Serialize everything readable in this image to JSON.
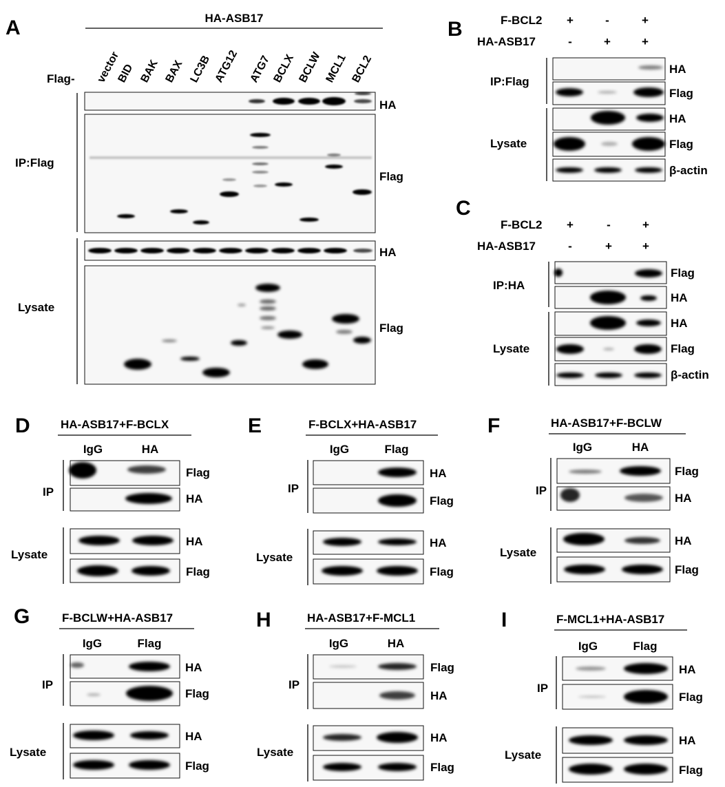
{
  "panelA": {
    "letter": "A",
    "header": "HA-ASB17",
    "row_prefix": "Flag-",
    "lanes": [
      "vector",
      "BID",
      "BAK",
      "BAX",
      "LC3B",
      "ATG12",
      "ATG7",
      "BCLX",
      "BCLW",
      "MCL1",
      "BCL2"
    ],
    "groups": [
      "IP:Flag",
      "Lysate"
    ],
    "blot_labels": [
      "HA",
      "Flag",
      "HA",
      "Flag"
    ]
  },
  "panelB": {
    "letter": "B",
    "rows": [
      {
        "label": "F-BCL2",
        "signs": [
          "+",
          "-",
          "+"
        ]
      },
      {
        "label": "HA-ASB17",
        "signs": [
          "-",
          "+",
          "+"
        ]
      }
    ],
    "groups": [
      "IP:Flag",
      "Lysate"
    ],
    "blot_labels": [
      "HA",
      "Flag",
      "HA",
      "Flag",
      "β-actin"
    ]
  },
  "panelC": {
    "letter": "C",
    "rows": [
      {
        "label": "F-BCL2",
        "signs": [
          "+",
          "-",
          "+"
        ]
      },
      {
        "label": "HA-ASB17",
        "signs": [
          "-",
          "+",
          "+"
        ]
      }
    ],
    "groups": [
      "IP:HA",
      "Lysate"
    ],
    "blot_labels": [
      "Flag",
      "HA",
      "HA",
      "Flag",
      "β-actin"
    ]
  },
  "small_panels": [
    {
      "letter": "D",
      "title": "HA-ASB17+F-BCLX",
      "lanes": [
        "IgG",
        "HA"
      ],
      "groups": [
        "IP",
        "Lysate"
      ],
      "labels": [
        "Flag",
        "HA",
        "HA",
        "Flag"
      ]
    },
    {
      "letter": "E",
      "title": "F-BCLX+HA-ASB17",
      "lanes": [
        "IgG",
        "Flag"
      ],
      "groups": [
        "IP",
        "Lysate"
      ],
      "labels": [
        "HA",
        "Flag",
        "HA",
        "Flag"
      ]
    },
    {
      "letter": "F",
      "title": "HA-ASB17+F-BCLW",
      "lanes": [
        "IgG",
        "HA"
      ],
      "groups": [
        "IP",
        "Lysate"
      ],
      "labels": [
        "Flag",
        "HA",
        "HA",
        "Flag"
      ]
    },
    {
      "letter": "G",
      "title": "F-BCLW+HA-ASB17",
      "lanes": [
        "IgG",
        "Flag"
      ],
      "groups": [
        "IP",
        "Lysate"
      ],
      "labels": [
        "HA",
        "Flag",
        "HA",
        "Flag"
      ]
    },
    {
      "letter": "H",
      "title": "HA-ASB17+F-MCL1",
      "lanes": [
        "IgG",
        "HA"
      ],
      "groups": [
        "IP",
        "Lysate"
      ],
      "labels": [
        "Flag",
        "HA",
        "HA",
        "Flag"
      ]
    },
    {
      "letter": "I",
      "title": "F-MCL1+HA-ASB17",
      "lanes": [
        "IgG",
        "Flag"
      ],
      "groups": [
        "IP",
        "Lysate"
      ],
      "labels": [
        "HA",
        "Flag",
        "HA",
        "Flag"
      ]
    }
  ]
}
